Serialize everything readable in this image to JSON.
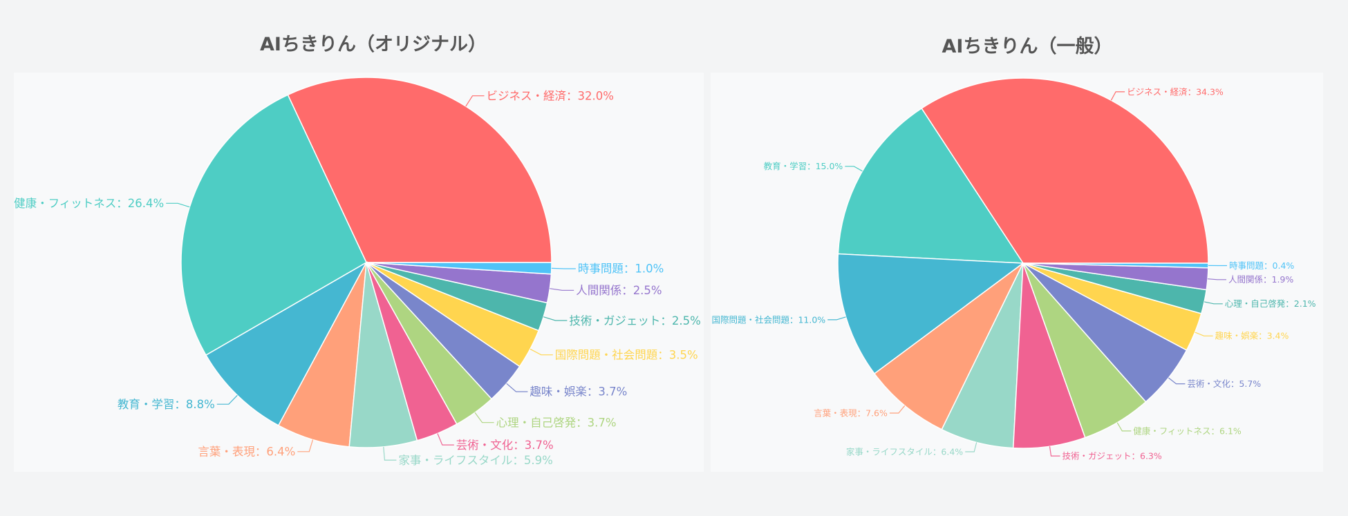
{
  "chart_data": [
    {
      "type": "pie",
      "title": "AIちきりん（オリジナル）",
      "start": "3-o'clock",
      "direction": "counterclockwise",
      "slices": [
        {
          "label": "ビジネス・経済",
          "value": 32.0,
          "text": "ビジネス・経済：32.0%",
          "color": "#ff6b6b"
        },
        {
          "label": "健康・フィットネス",
          "value": 26.4,
          "text": "健康・フィットネス：26.4%",
          "color": "#4ecdc4"
        },
        {
          "label": "教育・学習",
          "value": 8.8,
          "text": "教育・学習：8.8%",
          "color": "#45b7d1"
        },
        {
          "label": "言葉・表現",
          "value": 6.4,
          "text": "言葉・表現：6.4%",
          "color": "#ffa07a"
        },
        {
          "label": "家事・ライフスタイル",
          "value": 5.9,
          "text": "家事・ライフスタイル：5.9%",
          "color": "#98d8c8"
        },
        {
          "label": "芸術・文化",
          "value": 3.7,
          "text": "芸術・文化：3.7%",
          "color": "#f06292"
        },
        {
          "label": "心理・自己啓発",
          "value": 3.7,
          "text": "心理・自己啓発：3.7%",
          "color": "#aed581"
        },
        {
          "label": "趣味・娯楽",
          "value": 3.7,
          "text": "趣味・娯楽：3.7%",
          "color": "#7986cb"
        },
        {
          "label": "国際問題・社会問題",
          "value": 3.5,
          "text": "国際問題・社会問題：3.5%",
          "color": "#ffd54f"
        },
        {
          "label": "技術・ガジェット",
          "value": 2.5,
          "text": "技術・ガジェット：2.5%",
          "color": "#4db6ac"
        },
        {
          "label": "人間関係",
          "value": 2.5,
          "text": "人間関係：2.5%",
          "color": "#9575cd"
        },
        {
          "label": "時事問題",
          "value": 1.0,
          "text": "時事問題：1.0%",
          "color": "#4fc3f7"
        }
      ]
    },
    {
      "type": "pie",
      "title": "AIちきりん（一般）",
      "start": "3-o'clock",
      "direction": "counterclockwise",
      "slices": [
        {
          "label": "ビジネス・経済",
          "value": 34.3,
          "text": "ビジネス・経済：34.3%",
          "color": "#ff6b6b"
        },
        {
          "label": "教育・学習",
          "value": 15.0,
          "text": "教育・学習：15.0%",
          "color": "#4ecdc4"
        },
        {
          "label": "国際問題・社会問題",
          "value": 11.0,
          "text": "国際問題・社会問題：11.0%",
          "color": "#45b7d1"
        },
        {
          "label": "言葉・表現",
          "value": 7.6,
          "text": "言葉・表現：7.6%",
          "color": "#ffa07a"
        },
        {
          "label": "家事・ライフスタイル",
          "value": 6.4,
          "text": "家事・ライフスタイル：6.4%",
          "color": "#98d8c8"
        },
        {
          "label": "技術・ガジェット",
          "value": 6.3,
          "text": "技術・ガジェット：6.3%",
          "color": "#f06292"
        },
        {
          "label": "健康・フィットネス",
          "value": 6.1,
          "text": "健康・フィットネス：6.1%",
          "color": "#aed581"
        },
        {
          "label": "芸術・文化",
          "value": 5.7,
          "text": "芸術・文化：5.7%",
          "color": "#7986cb"
        },
        {
          "label": "趣味・娯楽",
          "value": 3.4,
          "text": "趣味・娯楽：3.4%",
          "color": "#ffd54f"
        },
        {
          "label": "心理・自己啓発",
          "value": 2.1,
          "text": "心理・自己啓発：2.1%",
          "color": "#4db6ac"
        },
        {
          "label": "人間関係",
          "value": 1.9,
          "text": "人間関係：1.9%",
          "color": "#9575cd"
        },
        {
          "label": "時事問題",
          "value": 0.4,
          "text": "時事問題：0.4%",
          "color": "#4fc3f7"
        }
      ]
    }
  ]
}
